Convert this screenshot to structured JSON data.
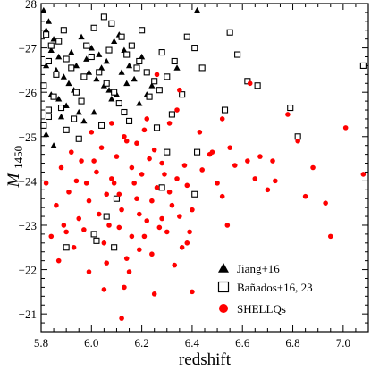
{
  "chart_data": {
    "type": "scatter",
    "xlabel": "redshift",
    "ylabel": "M",
    "ylabel_sub": "1450",
    "xlim": [
      5.8,
      7.1
    ],
    "ylim": [
      -20.6,
      -28.0
    ],
    "xticks": [
      5.8,
      6.0,
      6.2,
      6.4,
      6.6,
      6.8,
      7.0
    ],
    "xtick_labels": [
      "5.8",
      "6.0",
      "6.2",
      "6.4",
      "6.6",
      "6.8",
      "7.0"
    ],
    "yticks": [
      -28,
      -27,
      -26,
      -25,
      -24,
      -23,
      -22,
      -21
    ],
    "ytick_labels": [
      "−28",
      "−27",
      "−26",
      "−25",
      "−24",
      "−23",
      "−22",
      "−21"
    ],
    "legend_position": "bottom-right",
    "series": [
      {
        "name": "Jiang+16",
        "marker": "filled-triangle",
        "color": "#000000",
        "points": [
          [
            5.81,
            -27.85
          ],
          [
            5.83,
            -27.6
          ],
          [
            5.82,
            -27.4
          ],
          [
            5.85,
            -27.2
          ],
          [
            5.84,
            -26.95
          ],
          [
            5.87,
            -26.8
          ],
          [
            5.82,
            -26.6
          ],
          [
            5.86,
            -26.5
          ],
          [
            5.89,
            -26.35
          ],
          [
            5.91,
            -26.2
          ],
          [
            5.93,
            -26.05
          ],
          [
            5.84,
            -25.95
          ],
          [
            5.87,
            -25.85
          ],
          [
            5.9,
            -25.7
          ],
          [
            5.95,
            -25.55
          ],
          [
            5.97,
            -25.35
          ],
          [
            5.99,
            -26.45
          ],
          [
            6.02,
            -26.3
          ],
          [
            6.05,
            -26.15
          ],
          [
            6.07,
            -26.05
          ],
          [
            6.1,
            -25.95
          ],
          [
            6.12,
            -26.45
          ],
          [
            6.15,
            -26.6
          ],
          [
            6.17,
            -26.3
          ],
          [
            6.0,
            -27.0
          ],
          [
            6.03,
            -26.85
          ],
          [
            6.06,
            -26.7
          ],
          [
            6.09,
            -27.15
          ],
          [
            6.11,
            -27.3
          ],
          [
            6.13,
            -26.95
          ],
          [
            5.96,
            -27.25
          ],
          [
            5.98,
            -26.75
          ],
          [
            6.19,
            -25.75
          ],
          [
            6.22,
            -25.95
          ],
          [
            6.24,
            -26.15
          ],
          [
            5.82,
            -25.05
          ],
          [
            5.85,
            -24.8
          ],
          [
            5.88,
            -25.45
          ],
          [
            5.92,
            -26.9
          ],
          [
            6.42,
            -27.85
          ],
          [
            6.34,
            -26.55
          ],
          [
            6.08,
            -25.85
          ],
          [
            6.01,
            -25.55
          ],
          [
            6.14,
            -26.2
          ],
          [
            5.94,
            -26.6
          ],
          [
            6.04,
            -26.55
          ],
          [
            6.2,
            -26.8
          ]
        ]
      },
      {
        "name": "Bañados+16, 23",
        "marker": "open-square",
        "color": "#000000",
        "points": [
          [
            5.82,
            -27.3
          ],
          [
            5.84,
            -27.05
          ],
          [
            5.83,
            -26.7
          ],
          [
            5.86,
            -26.4
          ],
          [
            5.81,
            -26.15
          ],
          [
            5.85,
            -25.9
          ],
          [
            5.88,
            -25.65
          ],
          [
            5.83,
            -25.45
          ],
          [
            5.81,
            -25.25
          ],
          [
            5.9,
            -26.75
          ],
          [
            5.92,
            -26.55
          ],
          [
            5.94,
            -26.0
          ],
          [
            5.96,
            -25.8
          ],
          [
            5.93,
            -25.4
          ],
          [
            5.9,
            -25.15
          ],
          [
            5.95,
            -24.95
          ],
          [
            5.98,
            -27.05
          ],
          [
            6.0,
            -26.8
          ],
          [
            6.03,
            -26.45
          ],
          [
            6.06,
            -26.2
          ],
          [
            6.09,
            -26.0
          ],
          [
            6.11,
            -25.75
          ],
          [
            6.13,
            -25.55
          ],
          [
            6.04,
            -25.25
          ],
          [
            6.01,
            -27.45
          ],
          [
            6.05,
            -27.7
          ],
          [
            6.08,
            -27.55
          ],
          [
            6.12,
            -27.25
          ],
          [
            6.16,
            -27.05
          ],
          [
            6.19,
            -26.7
          ],
          [
            6.22,
            -26.45
          ],
          [
            6.25,
            -26.25
          ],
          [
            6.14,
            -26.85
          ],
          [
            6.18,
            -26.55
          ],
          [
            6.23,
            -25.9
          ],
          [
            6.27,
            -26.05
          ],
          [
            6.3,
            -26.35
          ],
          [
            6.28,
            -26.9
          ],
          [
            6.33,
            -26.7
          ],
          [
            6.36,
            -25.95
          ],
          [
            6.38,
            -27.25
          ],
          [
            6.41,
            -27.0
          ],
          [
            6.44,
            -26.55
          ],
          [
            6.32,
            -25.5
          ],
          [
            6.26,
            -25.2
          ],
          [
            6.55,
            -27.35
          ],
          [
            6.58,
            -26.85
          ],
          [
            6.62,
            -26.25
          ],
          [
            6.66,
            -26.15
          ],
          [
            6.53,
            -25.6
          ],
          [
            6.79,
            -25.65
          ],
          [
            6.82,
            -25.0
          ],
          [
            7.08,
            -26.6
          ],
          [
            6.3,
            -24.65
          ],
          [
            6.42,
            -24.65
          ],
          [
            6.28,
            -23.85
          ],
          [
            6.1,
            -23.6
          ],
          [
            6.41,
            -23.7
          ],
          [
            6.09,
            -22.5
          ],
          [
            6.06,
            -23.2
          ],
          [
            6.02,
            -22.65
          ],
          [
            6.01,
            -22.8
          ],
          [
            5.9,
            -22.5
          ],
          [
            5.83,
            -25.6
          ],
          [
            5.87,
            -27.15
          ],
          [
            6.15,
            -25.35
          ],
          [
            5.97,
            -26.35
          ],
          [
            6.2,
            -27.4
          ],
          [
            5.89,
            -27.4
          ],
          [
            6.07,
            -26.95
          ]
        ]
      },
      {
        "name": "SHELLQs",
        "marker": "filled-circle",
        "color": "#ff0000",
        "points": [
          [
            5.82,
            -23.95
          ],
          [
            5.86,
            -23.45
          ],
          [
            5.88,
            -24.3
          ],
          [
            5.9,
            -22.85
          ],
          [
            5.93,
            -22.5
          ],
          [
            5.95,
            -23.15
          ],
          [
            5.91,
            -23.75
          ],
          [
            5.87,
            -22.2
          ],
          [
            5.97,
            -22.9
          ],
          [
            5.99,
            -23.55
          ],
          [
            6.02,
            -24.2
          ],
          [
            6.05,
            -22.6
          ],
          [
            6.07,
            -23.0
          ],
          [
            6.09,
            -23.95
          ],
          [
            6.1,
            -24.55
          ],
          [
            6.12,
            -23.35
          ],
          [
            6.14,
            -22.25
          ],
          [
            6.16,
            -22.75
          ],
          [
            6.18,
            -23.6
          ],
          [
            6.2,
            -24.15
          ],
          [
            6.22,
            -23.1
          ],
          [
            6.24,
            -22.35
          ],
          [
            6.26,
            -23.85
          ],
          [
            6.28,
            -24.4
          ],
          [
            6.3,
            -22.85
          ],
          [
            6.32,
            -23.45
          ],
          [
            6.34,
            -24.05
          ],
          [
            6.36,
            -22.5
          ],
          [
            6.38,
            -23.9
          ],
          [
            6.4,
            -23.35
          ],
          [
            6.04,
            -24.75
          ],
          [
            6.0,
            -25.1
          ],
          [
            5.96,
            -24.45
          ],
          [
            6.08,
            -25.3
          ],
          [
            6.13,
            -25.0
          ],
          [
            6.18,
            -24.85
          ],
          [
            6.21,
            -25.15
          ],
          [
            6.25,
            -24.7
          ],
          [
            6.11,
            -22.95
          ],
          [
            6.15,
            -21.95
          ],
          [
            6.13,
            -21.6
          ],
          [
            6.12,
            -20.9
          ],
          [
            6.05,
            -21.55
          ],
          [
            5.99,
            -21.95
          ],
          [
            6.25,
            -21.45
          ],
          [
            6.4,
            -21.5
          ],
          [
            6.38,
            -22.6
          ],
          [
            6.48,
            -24.65
          ],
          [
            6.5,
            -23.95
          ],
          [
            6.52,
            -23.65
          ],
          [
            6.55,
            -24.75
          ],
          [
            6.57,
            -24.35
          ],
          [
            6.54,
            -23.0
          ],
          [
            6.62,
            -24.45
          ],
          [
            6.65,
            -24.05
          ],
          [
            6.67,
            -24.55
          ],
          [
            6.7,
            -23.8
          ],
          [
            6.73,
            -24.0
          ],
          [
            6.72,
            -24.45
          ],
          [
            6.82,
            -24.9
          ],
          [
            6.85,
            -23.65
          ],
          [
            6.88,
            -24.3
          ],
          [
            6.93,
            -23.5
          ],
          [
            6.95,
            -22.75
          ],
          [
            7.01,
            -25.2
          ],
          [
            7.08,
            -24.15
          ],
          [
            6.78,
            -25.5
          ],
          [
            6.63,
            -26.2
          ],
          [
            6.52,
            -25.4
          ],
          [
            6.34,
            -25.6
          ],
          [
            6.31,
            -25.3
          ],
          [
            6.47,
            -24.6
          ],
          [
            6.43,
            -25.1
          ],
          [
            6.35,
            -26.05
          ],
          [
            6.26,
            -26.4
          ],
          [
            6.22,
            -25.4
          ],
          [
            6.28,
            -23.15
          ],
          [
            6.33,
            -22.1
          ],
          [
            6.19,
            -22.45
          ],
          [
            6.06,
            -22.15
          ],
          [
            5.94,
            -24.0
          ],
          [
            5.84,
            -22.75
          ],
          [
            5.98,
            -23.95
          ],
          [
            6.03,
            -23.25
          ],
          [
            6.17,
            -23.95
          ],
          [
            6.23,
            -24.5
          ],
          [
            6.29,
            -24.15
          ],
          [
            6.35,
            -23.2
          ],
          [
            5.89,
            -23.0
          ],
          [
            6.01,
            -24.45
          ],
          [
            6.08,
            -24.05
          ],
          [
            6.16,
            -24.3
          ],
          [
            6.19,
            -23.25
          ],
          [
            6.27,
            -22.95
          ],
          [
            6.31,
            -23.75
          ],
          [
            6.11,
            -23.7
          ],
          [
            6.14,
            -24.9
          ],
          [
            5.92,
            -24.65
          ],
          [
            6.06,
            -23.7
          ],
          [
            6.21,
            -22.75
          ],
          [
            6.37,
            -24.35
          ],
          [
            6.24,
            -23.55
          ],
          [
            6.44,
            -24.25
          ],
          [
            6.39,
            -22.85
          ]
        ]
      }
    ]
  }
}
